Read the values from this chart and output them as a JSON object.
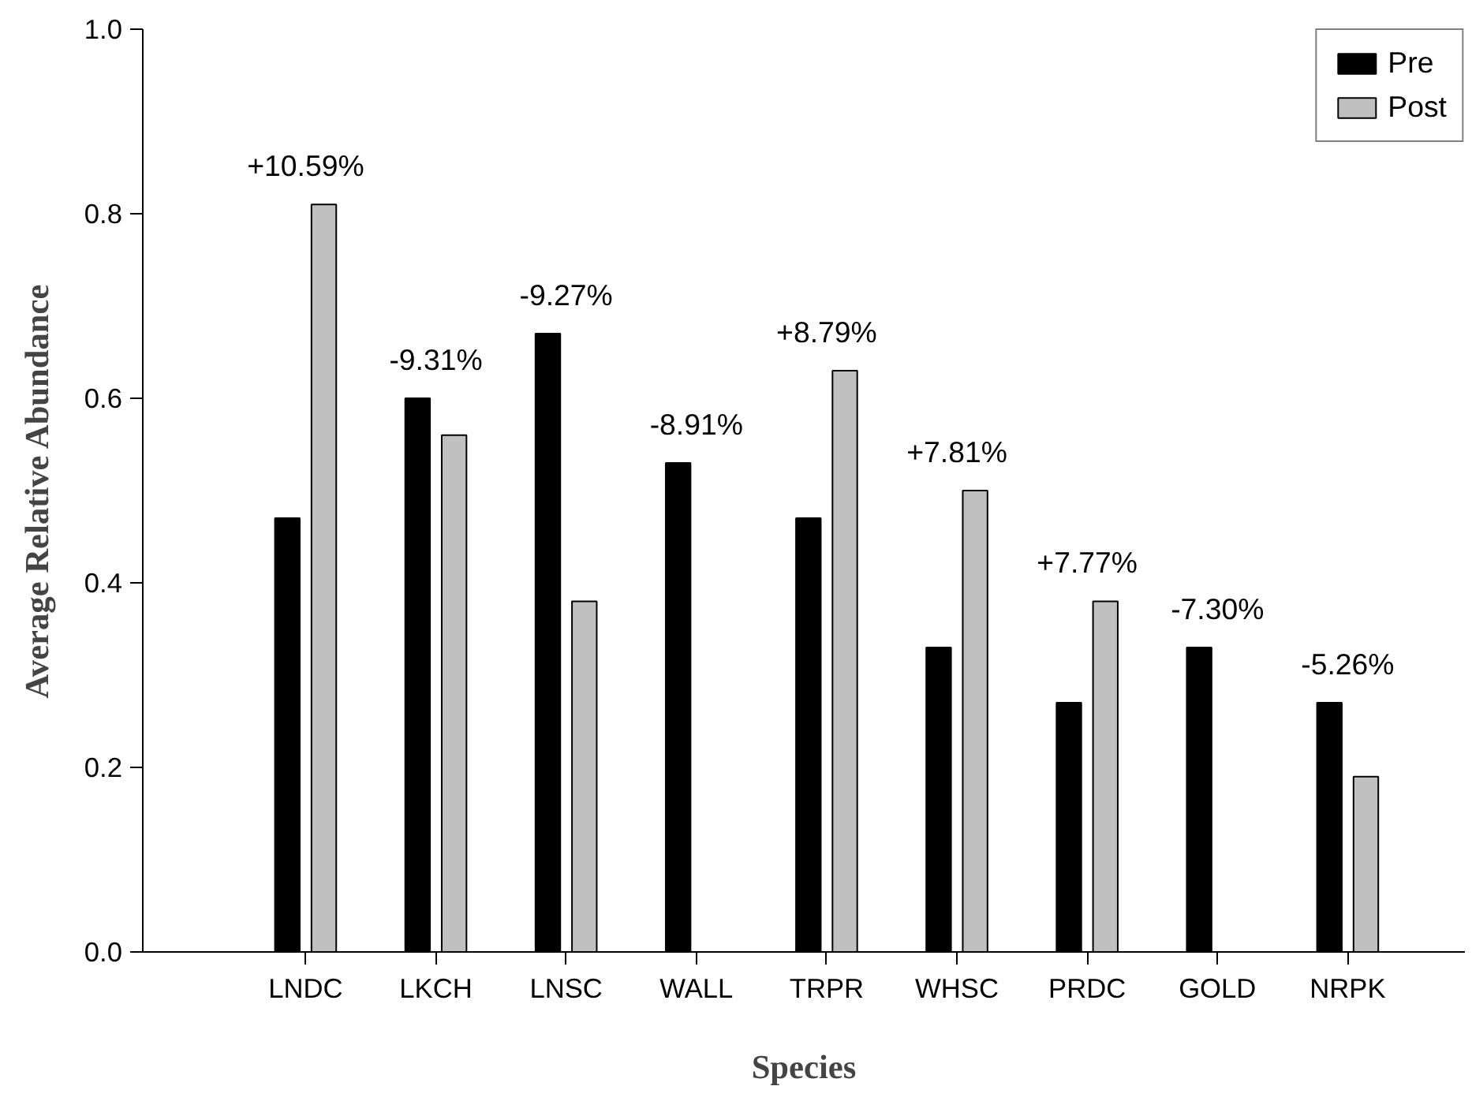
{
  "chart_data": {
    "type": "bar",
    "xlabel": "Species",
    "ylabel": "Average Relative Abundance",
    "categories": [
      "LNDC",
      "LKCH",
      "LNSC",
      "WALL",
      "TRPR",
      "WHSC",
      "PRDC",
      "GOLD",
      "NRPK"
    ],
    "series": [
      {
        "name": "Pre",
        "color": "#000000",
        "values": [
          0.47,
          0.6,
          0.67,
          0.53,
          0.47,
          0.33,
          0.27,
          0.33,
          0.27
        ]
      },
      {
        "name": "Post",
        "color": "#c0c0c0",
        "values": [
          0.81,
          0.56,
          0.38,
          null,
          0.63,
          0.5,
          0.38,
          null,
          0.19
        ]
      }
    ],
    "annotations": [
      {
        "text": "+10.59%",
        "x": "LNDC",
        "y": 0.81
      },
      {
        "text": "-9.31%",
        "x": "LKCH",
        "y": 0.6
      },
      {
        "text": "-9.27%",
        "x": "LNSC",
        "y": 0.67
      },
      {
        "text": "-8.91%",
        "x": "WALL",
        "y": 0.53
      },
      {
        "text": "+8.79%",
        "x": "TRPR",
        "y": 0.63
      },
      {
        "text": "+7.81%",
        "x": "WHSC",
        "y": 0.5
      },
      {
        "text": "+7.77%",
        "x": "PRDC",
        "y": 0.38
      },
      {
        "text": "-7.30%",
        "x": "GOLD",
        "y": 0.33
      },
      {
        "text": "-5.26%",
        "x": "NRPK",
        "y": 0.27
      }
    ],
    "ylim": [
      0,
      1.0
    ],
    "yticks": [
      {
        "value": 0,
        "label": "0.0"
      },
      0.2,
      0.4,
      0.6,
      0.8,
      {
        "value": 1.0,
        "label": "1.0"
      }
    ],
    "grid": false,
    "legend": "top right"
  }
}
